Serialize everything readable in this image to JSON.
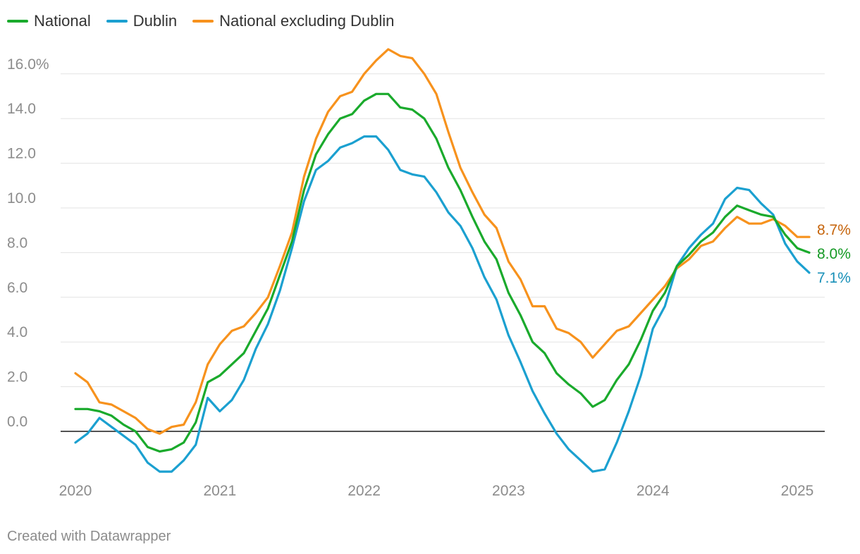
{
  "chart_data": {
    "type": "line",
    "title": "",
    "xlabel": "",
    "ylabel": "",
    "ylim": [
      -1.8,
      16.8
    ],
    "xlim": [
      2020,
      2025.25
    ],
    "y_ticks": [
      {
        "value": 16,
        "label": "16.0%"
      },
      {
        "value": 14,
        "label": "14.0"
      },
      {
        "value": 12,
        "label": "12.0"
      },
      {
        "value": 10,
        "label": "10.0"
      },
      {
        "value": 8,
        "label": "8.0"
      },
      {
        "value": 6,
        "label": "6.0"
      },
      {
        "value": 4,
        "label": "4.0"
      },
      {
        "value": 2,
        "label": "2.0"
      },
      {
        "value": 0,
        "label": "0.0"
      }
    ],
    "x_ticks": [
      {
        "value": 2020,
        "label": "2020"
      },
      {
        "value": 2021,
        "label": "2021"
      },
      {
        "value": 2022,
        "label": "2022"
      },
      {
        "value": 2023,
        "label": "2023"
      },
      {
        "value": 2024,
        "label": "2024"
      },
      {
        "value": 2025,
        "label": "2025"
      }
    ],
    "x_start": 2020,
    "x_step": 0.08333,
    "grid": true,
    "legend_position": "top-left",
    "series": [
      {
        "name": "National",
        "color": "#1aaa2c",
        "label_color": "#149924",
        "end_label": "8.0%",
        "values": [
          1.0,
          1.0,
          0.9,
          0.7,
          0.3,
          0.0,
          -0.7,
          -0.9,
          -0.8,
          -0.5,
          0.4,
          2.2,
          2.5,
          3.0,
          3.5,
          4.5,
          5.5,
          7.0,
          8.5,
          10.8,
          12.4,
          13.3,
          14.0,
          14.2,
          14.8,
          15.1,
          15.1,
          14.5,
          14.4,
          14.0,
          13.1,
          11.8,
          10.8,
          9.6,
          8.5,
          7.7,
          6.2,
          5.2,
          4.0,
          3.5,
          2.6,
          2.1,
          1.7,
          1.1,
          1.4,
          2.3,
          3.0,
          4.1,
          5.4,
          6.2,
          7.4,
          7.9,
          8.5,
          8.9,
          9.6,
          10.1,
          9.9,
          9.7,
          9.6,
          8.8,
          8.2,
          8.0
        ]
      },
      {
        "name": "Dublin",
        "color": "#1ba0d0",
        "label_color": "#1890b8",
        "end_label": "7.1%",
        "values": [
          -0.5,
          -0.1,
          0.6,
          0.2,
          -0.2,
          -0.6,
          -1.4,
          -1.8,
          -1.8,
          -1.3,
          -0.6,
          1.5,
          0.9,
          1.4,
          2.3,
          3.7,
          4.8,
          6.3,
          8.2,
          10.3,
          11.7,
          12.1,
          12.7,
          12.9,
          13.2,
          13.2,
          12.6,
          11.7,
          11.5,
          11.4,
          10.7,
          9.8,
          9.2,
          8.2,
          6.9,
          5.9,
          4.3,
          3.1,
          1.8,
          0.8,
          -0.1,
          -0.8,
          -1.3,
          -1.8,
          -1.7,
          -0.5,
          0.9,
          2.5,
          4.6,
          5.6,
          7.4,
          8.2,
          8.8,
          9.3,
          10.4,
          10.9,
          10.8,
          10.2,
          9.7,
          8.4,
          7.6,
          7.1
        ]
      },
      {
        "name": "National excluding Dublin",
        "color": "#f7921d",
        "label_color": "#c6640b",
        "end_label": "8.7%",
        "values": [
          2.6,
          2.2,
          1.3,
          1.2,
          0.9,
          0.6,
          0.1,
          -0.1,
          0.2,
          0.3,
          1.3,
          3.0,
          3.9,
          4.5,
          4.7,
          5.3,
          6.0,
          7.4,
          8.9,
          11.4,
          13.1,
          14.3,
          15.0,
          15.2,
          16.0,
          16.6,
          17.1,
          16.8,
          16.7,
          16.0,
          15.1,
          13.4,
          11.8,
          10.7,
          9.7,
          9.1,
          7.6,
          6.8,
          5.6,
          5.6,
          4.6,
          4.4,
          4.0,
          3.3,
          3.9,
          4.5,
          4.7,
          5.3,
          5.9,
          6.5,
          7.3,
          7.7,
          8.3,
          8.5,
          9.1,
          9.6,
          9.3,
          9.3,
          9.5,
          9.2,
          8.7,
          8.7
        ]
      }
    ]
  },
  "footer": {
    "credit": "Created with Datawrapper"
  }
}
